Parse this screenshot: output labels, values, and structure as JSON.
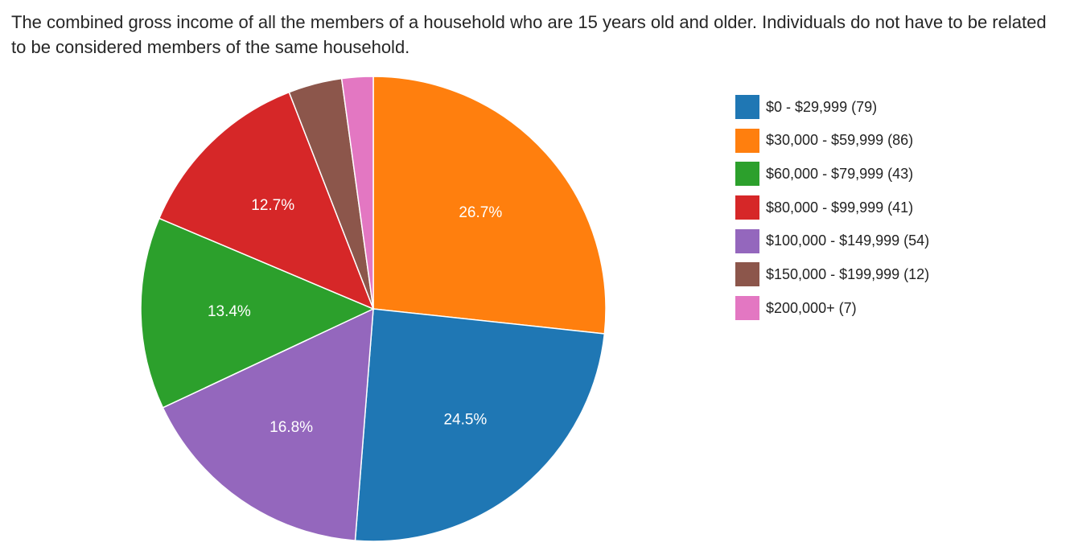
{
  "question": {
    "text": "The combined gross income of all the members of a household who are 15 years old and older. Individuals do not have to be related to be considered members of the same household."
  },
  "chart_data": {
    "type": "pie",
    "title": "",
    "categories": [
      "$0 - $29,999",
      "$30,000 - $59,999",
      "$60,000 - $79,999",
      "$80,000 - $99,999",
      "$100,000 - $149,999",
      "$150,000 - $199,999",
      "$200,000+"
    ],
    "values": [
      79,
      86,
      43,
      41,
      54,
      12,
      7
    ],
    "legend_labels": [
      "$0 - $29,999 (79)",
      "$30,000 - $59,999 (86)",
      "$60,000 - $79,999 (43)",
      "$80,000 - $99,999 (41)",
      "$100,000 - $149,999 (54)",
      "$150,000 - $199,999 (12)",
      "$200,000+ (7)"
    ],
    "percent_labels": [
      "24.5%",
      "26.7%",
      "13.4%",
      "12.7%",
      "16.8%",
      "",
      ""
    ],
    "colors": [
      "#1f77b4",
      "#ff7f0e",
      "#2ca02c",
      "#d62728",
      "#9467bd",
      "#8c564b",
      "#e377c2"
    ],
    "legend_position": "right"
  }
}
